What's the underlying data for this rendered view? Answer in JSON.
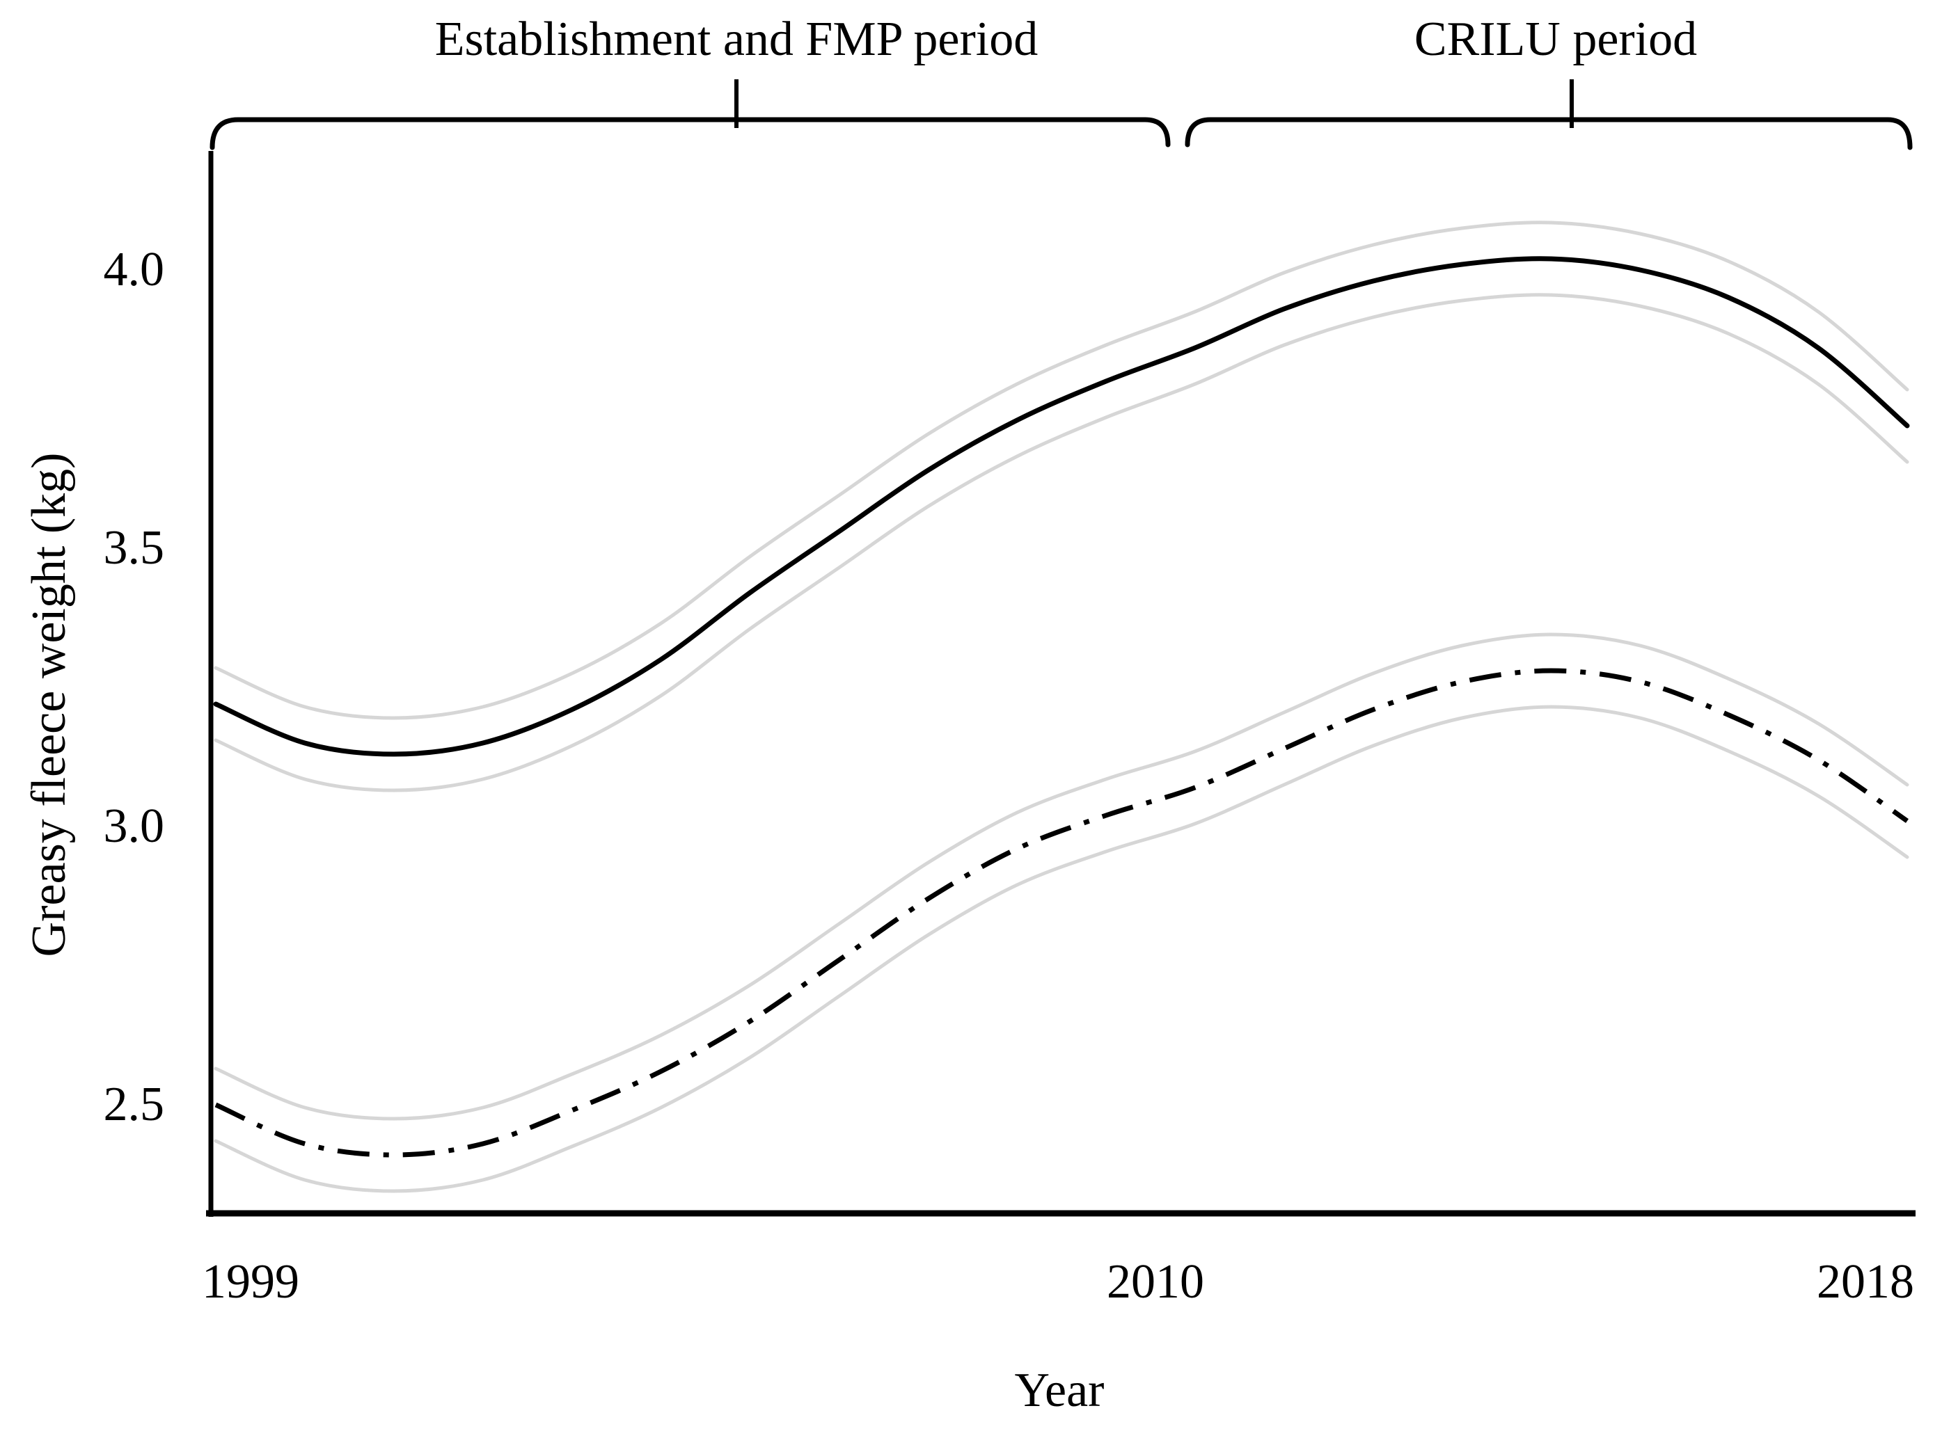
{
  "chart_data": {
    "type": "line",
    "title": "",
    "xlabel": "Year",
    "ylabel": "Greasy fleece weight (kg)",
    "x": [
      1999,
      2000,
      2001,
      2002,
      2003,
      2004,
      2005,
      2006,
      2007,
      2008,
      2009,
      2010,
      2011,
      2012,
      2013,
      2014,
      2015,
      2016,
      2017,
      2018
    ],
    "x_tick_labels": [
      "1999",
      "2010",
      "2018"
    ],
    "x_tick_values": [
      1999,
      2010,
      2018
    ],
    "y_tick_labels": [
      "4.0",
      "3.5",
      "3.0",
      "2.5"
    ],
    "y_tick_values": [
      4.0,
      3.5,
      3.0,
      2.5
    ],
    "xlim": [
      1999,
      2018
    ],
    "ylim": [
      2.3,
      4.2
    ],
    "grid": false,
    "legend": "none",
    "line_color": "#000000",
    "confidence_band_color": "#d6d6d6",
    "series": [
      {
        "name": "upper-curve-solid",
        "line_style": "solid",
        "color": "#000000",
        "ci_halfwidth": 0.065,
        "values": [
          3.22,
          3.15,
          3.13,
          3.15,
          3.21,
          3.3,
          3.42,
          3.53,
          3.64,
          3.73,
          3.8,
          3.86,
          3.93,
          3.98,
          4.01,
          4.02,
          4.0,
          3.95,
          3.86,
          3.72
        ]
      },
      {
        "name": "lower-curve-dash-dot",
        "line_style": "dash-dot",
        "color": "#000000",
        "ci_halfwidth": 0.065,
        "values": [
          2.5,
          2.43,
          2.41,
          2.43,
          2.49,
          2.56,
          2.65,
          2.76,
          2.87,
          2.96,
          3.02,
          3.07,
          3.14,
          3.21,
          3.26,
          3.28,
          3.26,
          3.2,
          3.12,
          3.01
        ]
      }
    ],
    "annotations": [
      {
        "text": "Establishment and FMP period",
        "x_start_year": 1999,
        "x_end_year": 2010
      },
      {
        "text": "CRILU period",
        "x_start_year": 2010,
        "x_end_year": 2018
      }
    ]
  }
}
